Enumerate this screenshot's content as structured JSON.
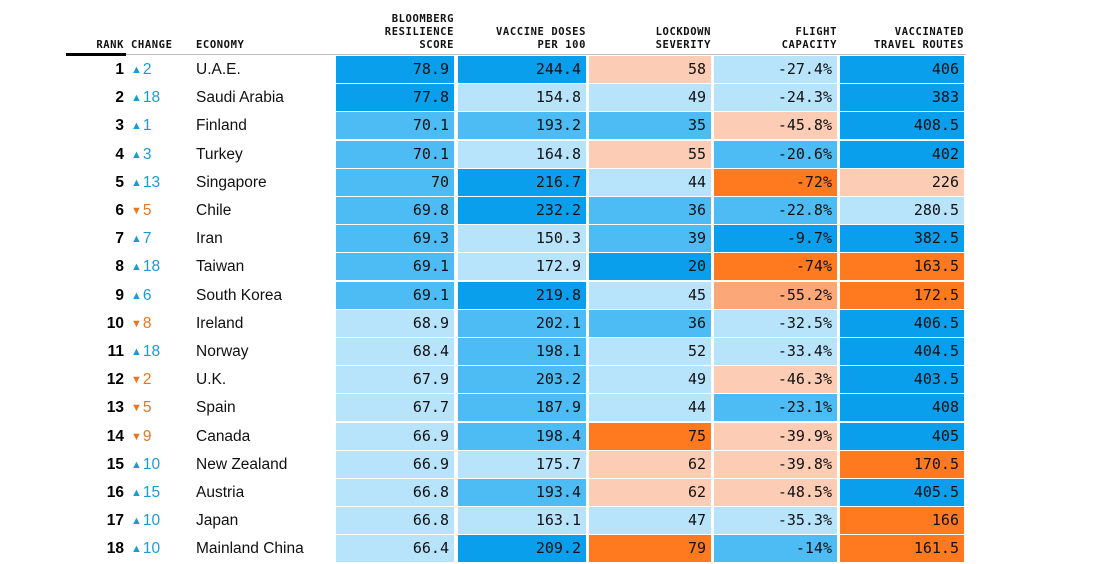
{
  "chart_data": {
    "type": "table",
    "title": "",
    "columns": [
      {
        "key": "rank",
        "label": "RANK"
      },
      {
        "key": "change",
        "label": "CHANGE"
      },
      {
        "key": "economy",
        "label": "ECONOMY"
      },
      {
        "key": "score",
        "label": "BLOOMBERG\nRESILIENCE\nSCORE"
      },
      {
        "key": "doses",
        "label": "VACCINE DOSES\nPER 100"
      },
      {
        "key": "lockdown",
        "label": "LOCKDOWN\nSEVERITY"
      },
      {
        "key": "flight",
        "label": "FLIGHT\nCAPACITY"
      },
      {
        "key": "routes",
        "label": "VACCINATED\nTRAVEL ROUTES"
      }
    ],
    "rows": [
      {
        "rank": "1",
        "dir": "up",
        "change": "2",
        "economy": "U.A.E.",
        "score": "78.9",
        "doses": "244.4",
        "lockdown": "58",
        "flight": "-27.4%",
        "routes": "406"
      },
      {
        "rank": "2",
        "dir": "up",
        "change": "18",
        "economy": "Saudi Arabia",
        "score": "77.8",
        "doses": "154.8",
        "lockdown": "49",
        "flight": "-24.3%",
        "routes": "383"
      },
      {
        "rank": "3",
        "dir": "up",
        "change": "1",
        "economy": "Finland",
        "score": "70.1",
        "doses": "193.2",
        "lockdown": "35",
        "flight": "-45.8%",
        "routes": "408.5"
      },
      {
        "rank": "4",
        "dir": "up",
        "change": "3",
        "economy": "Turkey",
        "score": "70.1",
        "doses": "164.8",
        "lockdown": "55",
        "flight": "-20.6%",
        "routes": "402"
      },
      {
        "rank": "5",
        "dir": "up",
        "change": "13",
        "economy": "Singapore",
        "score": "70",
        "doses": "216.7",
        "lockdown": "44",
        "flight": "-72%",
        "routes": "226"
      },
      {
        "rank": "6",
        "dir": "down",
        "change": "5",
        "economy": "Chile",
        "score": "69.8",
        "doses": "232.2",
        "lockdown": "36",
        "flight": "-22.8%",
        "routes": "280.5"
      },
      {
        "rank": "7",
        "dir": "up",
        "change": "7",
        "economy": "Iran",
        "score": "69.3",
        "doses": "150.3",
        "lockdown": "39",
        "flight": "-9.7%",
        "routes": "382.5"
      },
      {
        "rank": "8",
        "dir": "up",
        "change": "18",
        "economy": "Taiwan",
        "score": "69.1",
        "doses": "172.9",
        "lockdown": "20",
        "flight": "-74%",
        "routes": "163.5"
      },
      {
        "rank": "9",
        "dir": "up",
        "change": "6",
        "economy": "South Korea",
        "score": "69.1",
        "doses": "219.8",
        "lockdown": "45",
        "flight": "-55.2%",
        "routes": "172.5"
      },
      {
        "rank": "10",
        "dir": "down",
        "change": "8",
        "economy": "Ireland",
        "score": "68.9",
        "doses": "202.1",
        "lockdown": "36",
        "flight": "-32.5%",
        "routes": "406.5"
      },
      {
        "rank": "11",
        "dir": "up",
        "change": "18",
        "economy": "Norway",
        "score": "68.4",
        "doses": "198.1",
        "lockdown": "52",
        "flight": "-33.4%",
        "routes": "404.5"
      },
      {
        "rank": "12",
        "dir": "down",
        "change": "2",
        "economy": "U.K.",
        "score": "67.9",
        "doses": "203.2",
        "lockdown": "49",
        "flight": "-46.3%",
        "routes": "403.5"
      },
      {
        "rank": "13",
        "dir": "down",
        "change": "5",
        "economy": "Spain",
        "score": "67.7",
        "doses": "187.9",
        "lockdown": "44",
        "flight": "-23.1%",
        "routes": "408"
      },
      {
        "rank": "14",
        "dir": "down",
        "change": "9",
        "economy": "Canada",
        "score": "66.9",
        "doses": "198.4",
        "lockdown": "75",
        "flight": "-39.9%",
        "routes": "405"
      },
      {
        "rank": "15",
        "dir": "up",
        "change": "10",
        "economy": "New Zealand",
        "score": "66.9",
        "doses": "175.7",
        "lockdown": "62",
        "flight": "-39.8%",
        "routes": "170.5"
      },
      {
        "rank": "16",
        "dir": "up",
        "change": "15",
        "economy": "Austria",
        "score": "66.8",
        "doses": "193.4",
        "lockdown": "62",
        "flight": "-48.5%",
        "routes": "405.5"
      },
      {
        "rank": "17",
        "dir": "up",
        "change": "10",
        "economy": "Japan",
        "score": "66.8",
        "doses": "163.1",
        "lockdown": "47",
        "flight": "-35.3%",
        "routes": "166"
      },
      {
        "rank": "18",
        "dir": "up",
        "change": "10",
        "economy": "Mainland China",
        "score": "66.4",
        "doses": "209.2",
        "lockdown": "79",
        "flight": "-14%",
        "routes": "161.5"
      }
    ],
    "cell_colors": [
      [
        "#0a9fec",
        "#0a9fec",
        "#fcccb4",
        "#b7e3fb",
        "#0a9fec"
      ],
      [
        "#0a9fec",
        "#b7e3fb",
        "#b7e3fb",
        "#b7e3fb",
        "#0a9fec"
      ],
      [
        "#4dbcf4",
        "#4dbcf4",
        "#4dbcf4",
        "#fcccb4",
        "#0a9fec"
      ],
      [
        "#4dbcf4",
        "#b7e3fb",
        "#fcccb4",
        "#4dbcf4",
        "#0a9fec"
      ],
      [
        "#4dbcf4",
        "#0a9fec",
        "#b7e3fb",
        "#ff7a1f",
        "#fcccb4"
      ],
      [
        "#4dbcf4",
        "#0a9fec",
        "#4dbcf4",
        "#4dbcf4",
        "#b7e3fb"
      ],
      [
        "#4dbcf4",
        "#b7e3fb",
        "#4dbcf4",
        "#0a9fec",
        "#0a9fec"
      ],
      [
        "#4dbcf4",
        "#b7e3fb",
        "#0a9fec",
        "#ff7a1f",
        "#ff7a1f"
      ],
      [
        "#4dbcf4",
        "#0a9fec",
        "#b7e3fb",
        "#fca777",
        "#ff7a1f"
      ],
      [
        "#b7e3fb",
        "#4dbcf4",
        "#4dbcf4",
        "#b7e3fb",
        "#0a9fec"
      ],
      [
        "#b7e3fb",
        "#4dbcf4",
        "#b7e3fb",
        "#b7e3fb",
        "#0a9fec"
      ],
      [
        "#b7e3fb",
        "#4dbcf4",
        "#b7e3fb",
        "#fcccb4",
        "#0a9fec"
      ],
      [
        "#b7e3fb",
        "#4dbcf4",
        "#b7e3fb",
        "#4dbcf4",
        "#0a9fec"
      ],
      [
        "#b7e3fb",
        "#4dbcf4",
        "#ff7a1f",
        "#fcccb4",
        "#0a9fec"
      ],
      [
        "#b7e3fb",
        "#b7e3fb",
        "#fcccb4",
        "#fcccb4",
        "#ff7a1f"
      ],
      [
        "#b7e3fb",
        "#4dbcf4",
        "#fcccb4",
        "#fcccb4",
        "#0a9fec"
      ],
      [
        "#b7e3fb",
        "#b7e3fb",
        "#b7e3fb",
        "#b7e3fb",
        "#ff7a1f"
      ],
      [
        "#b7e3fb",
        "#0a9fec",
        "#ff7a1f",
        "#4dbcf4",
        "#ff7a1f"
      ]
    ],
    "change_colors": {
      "up": "#1b9ad6",
      "down": "#e8761f"
    }
  }
}
